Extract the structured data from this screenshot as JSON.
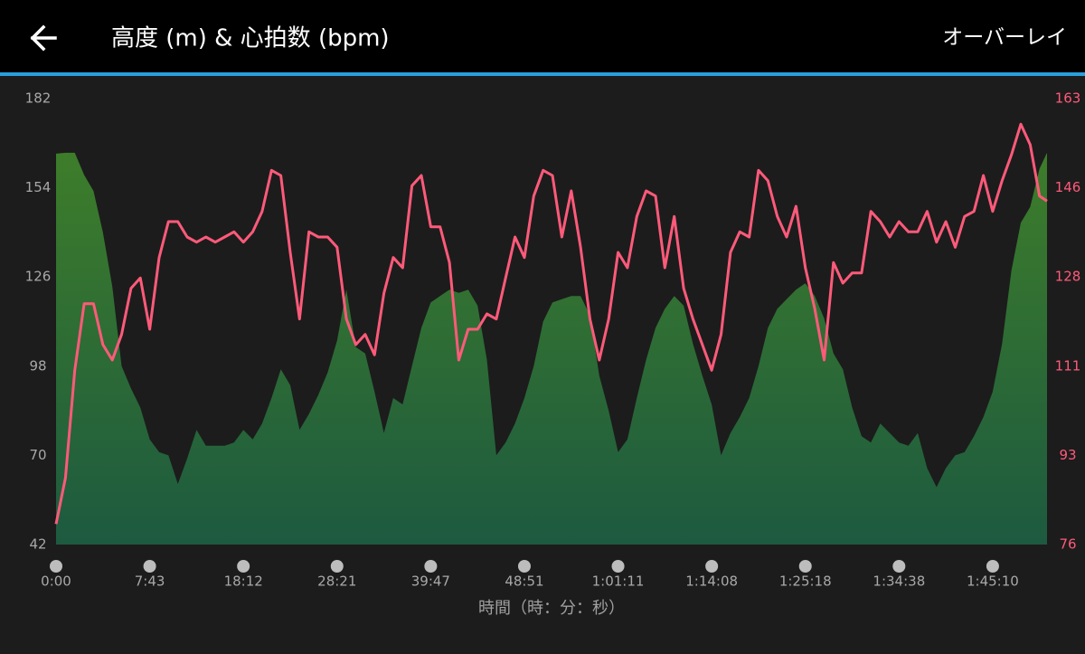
{
  "header": {
    "title": "高度 (m) & 心拍数 (bpm)",
    "action": "オーバーレイ"
  },
  "chart_data": {
    "type": "line",
    "xlabel": "時間（時：分：秒）",
    "x": [
      0,
      1,
      2,
      3,
      4,
      5,
      6,
      7,
      8,
      9,
      10,
      11,
      12,
      13,
      14,
      15,
      16,
      17,
      18,
      19,
      20,
      21,
      22,
      23,
      24,
      25,
      26,
      27,
      28,
      29,
      30,
      31,
      32,
      33,
      34,
      35,
      36,
      37,
      38,
      39,
      40,
      41,
      42,
      43,
      44,
      45,
      46,
      47,
      48,
      49,
      50,
      51,
      52,
      53,
      54,
      55,
      56,
      57,
      58,
      59,
      60,
      61,
      62,
      63,
      64,
      65,
      66,
      67,
      68,
      69,
      70,
      71,
      72,
      73,
      74,
      75,
      76,
      77,
      78,
      79,
      80,
      81,
      82,
      83,
      84,
      85,
      86,
      87,
      88,
      89,
      90,
      91,
      92,
      93,
      94,
      95,
      96,
      97,
      98,
      99,
      100,
      101,
      102,
      103,
      104,
      105,
      105.8
    ],
    "xlim": [
      0,
      105.8
    ],
    "xticks": [
      {
        "value": 0,
        "label": "0:00"
      },
      {
        "value": 10,
        "label": "7:43"
      },
      {
        "value": 20,
        "label": "18:12"
      },
      {
        "value": 30,
        "label": "28:21"
      },
      {
        "value": 40,
        "label": "39:47"
      },
      {
        "value": 50,
        "label": "48:51"
      },
      {
        "value": 60,
        "label": "1:01:11"
      },
      {
        "value": 70,
        "label": "1:14:08"
      },
      {
        "value": 80,
        "label": "1:25:18"
      },
      {
        "value": 90,
        "label": "1:34:38"
      },
      {
        "value": 100,
        "label": "1:45:10"
      }
    ],
    "ylim": [
      42,
      182
    ],
    "yticks": [
      42,
      70,
      98,
      126,
      154,
      182
    ],
    "y2lim": [
      76,
      163
    ],
    "y2ticks": [
      76,
      {
        "value": 93.4,
        "label": "93"
      },
      {
        "value": 110.8,
        "label": "111"
      },
      {
        "value": 128.2,
        "label": "128"
      },
      {
        "value": 145.6,
        "label": "146"
      },
      163
    ],
    "series": [
      {
        "name": "高度 (m)",
        "kind": "area",
        "color": "#3d7d2a",
        "color2": "#1d5a40",
        "values": [
          164.7,
          165,
          165,
          158,
          153,
          140,
          123,
          98,
          91,
          85,
          75,
          71,
          70,
          61,
          69,
          78,
          73,
          73,
          73,
          74,
          78,
          75,
          80,
          88,
          97,
          92,
          78,
          83,
          89,
          96,
          106,
          122,
          104,
          102,
          90,
          77,
          88,
          86,
          98,
          110,
          118,
          120,
          122,
          121,
          122,
          117,
          100,
          70,
          74,
          80,
          88,
          98,
          112,
          118,
          119,
          120,
          120,
          114,
          95,
          84,
          71,
          75,
          88,
          100,
          110,
          116,
          120,
          117,
          105,
          95,
          86,
          70,
          77,
          82,
          88,
          98,
          110,
          116,
          119,
          122,
          124,
          120,
          113,
          102,
          97,
          85,
          76,
          74,
          80,
          77,
          74,
          73,
          77,
          66,
          60,
          66,
          70,
          71,
          76,
          82,
          90,
          105,
          128,
          143,
          148,
          160,
          165
        ]
      },
      {
        "name": "心拍数 (bpm)",
        "kind": "line",
        "axis": "y2",
        "color": "#ff5a7a",
        "values": [
          80,
          89,
          110,
          123,
          123,
          115,
          112,
          117,
          126,
          128,
          118,
          132,
          139,
          139,
          136,
          135,
          136,
          135,
          136,
          137,
          135,
          137,
          141,
          149,
          148,
          133,
          120,
          137,
          136,
          136,
          134,
          120,
          115,
          117,
          113,
          125,
          132,
          130,
          146,
          148,
          138,
          138,
          131,
          112,
          118,
          118,
          121,
          120,
          128,
          136,
          132,
          144,
          149,
          148,
          136,
          145,
          134,
          120,
          112,
          120,
          133,
          130,
          140,
          145,
          144,
          130,
          140,
          126,
          120,
          115,
          110,
          117,
          133,
          137,
          136,
          149,
          147,
          140,
          136,
          142,
          130,
          122,
          112,
          131,
          127,
          129,
          129,
          141,
          139,
          136,
          139,
          137,
          137,
          141,
          135,
          139,
          134,
          140,
          141,
          148,
          141,
          147,
          152,
          158,
          154,
          144,
          143
        ]
      }
    ]
  }
}
